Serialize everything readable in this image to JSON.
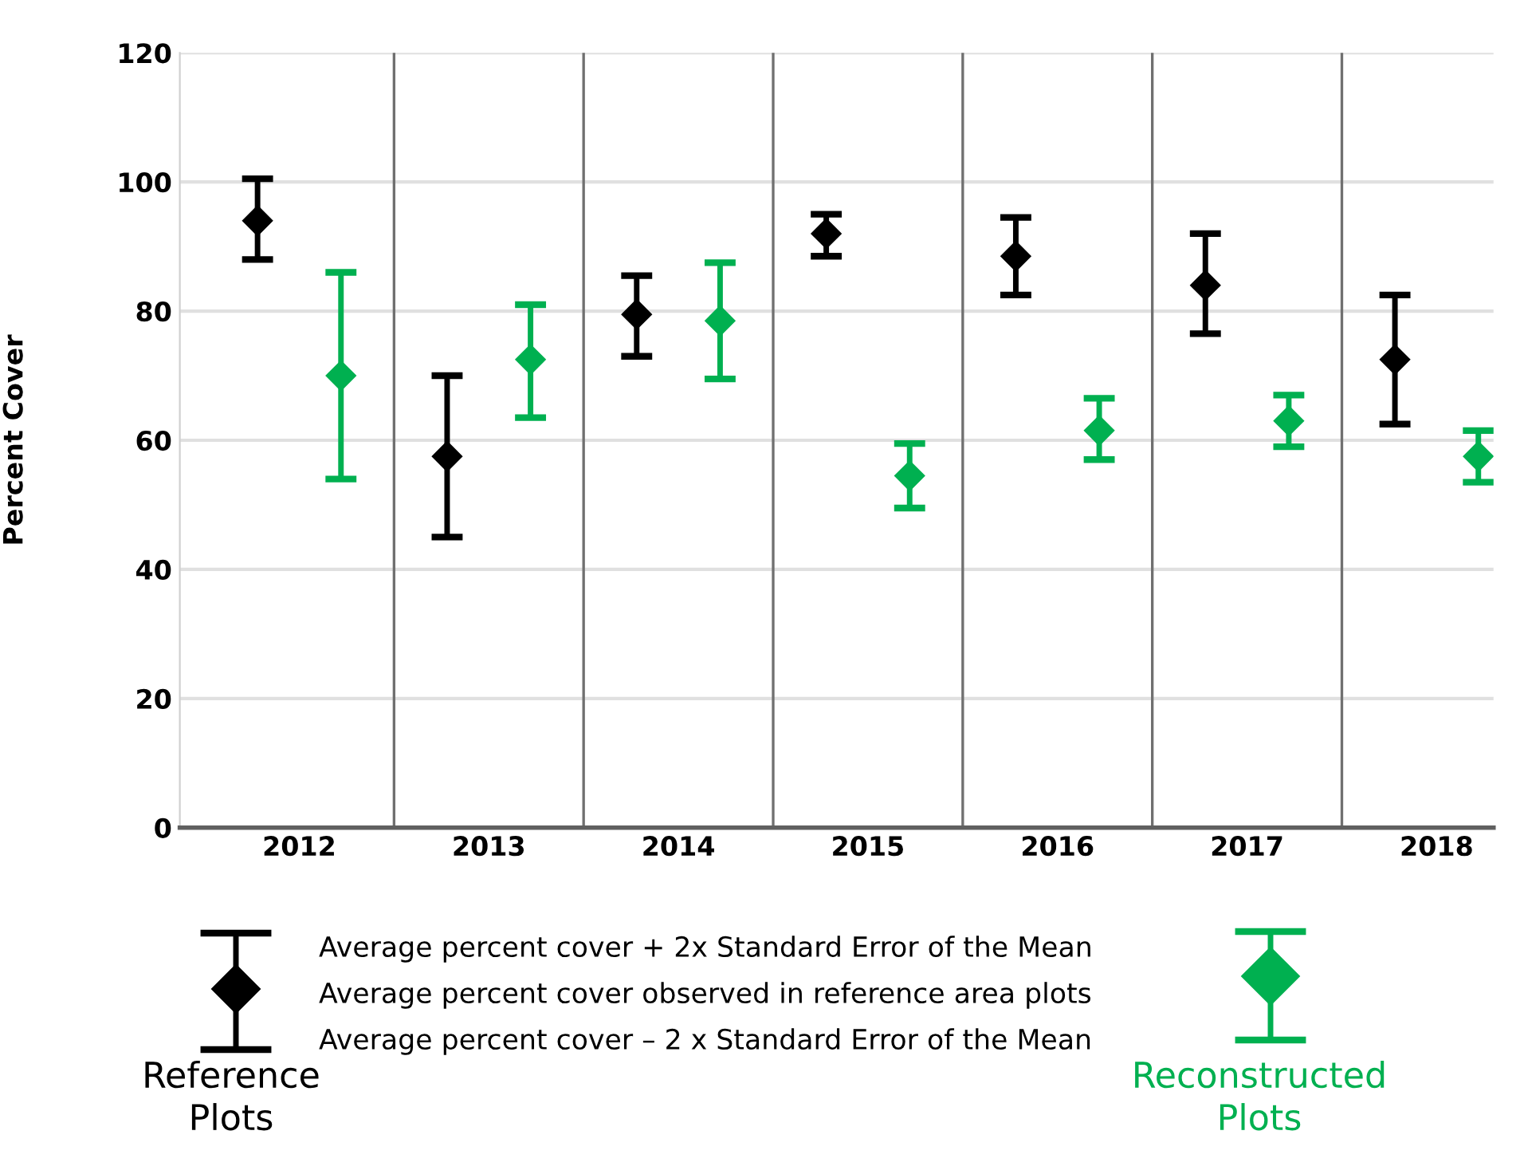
{
  "chart_data": {
    "type": "scatter",
    "ylabel": "Percent Cover",
    "categories": [
      "2012",
      "2013",
      "2014",
      "2015",
      "2016",
      "2017",
      "2018"
    ],
    "series": [
      {
        "name": "Reference Plots",
        "color": "#000000",
        "values": [
          94,
          57.5,
          79.5,
          92,
          88.5,
          84,
          72.5
        ],
        "errors": [
          [
            88,
            100.5
          ],
          [
            45,
            70
          ],
          [
            73,
            85.5
          ],
          [
            88.5,
            95
          ],
          [
            82.5,
            94.5
          ],
          [
            76.5,
            92
          ],
          [
            62.5,
            82.5
          ]
        ]
      },
      {
        "name": "Reconstructed Plots",
        "color": "#00b050",
        "values": [
          70,
          72.5,
          78.5,
          54.5,
          61.5,
          63,
          57.5
        ],
        "errors": [
          [
            54,
            86
          ],
          [
            63.5,
            81
          ],
          [
            69.5,
            87.5
          ],
          [
            49.5,
            59.5
          ],
          [
            57,
            66.5
          ],
          [
            59,
            67
          ],
          [
            53.5,
            61.5
          ]
        ]
      }
    ],
    "ylim": [
      0,
      120
    ],
    "yticks": [
      0,
      20,
      40,
      60,
      80,
      100,
      120
    ],
    "grid": "y",
    "marker": "diamond",
    "legend": "bottom",
    "annotations": [
      "Average percent cover + 2x Standard Error of the Mean",
      "Average percent cover observed in reference area plots",
      "Average percent cover – 2 x Standard Error of the Mean"
    ]
  }
}
